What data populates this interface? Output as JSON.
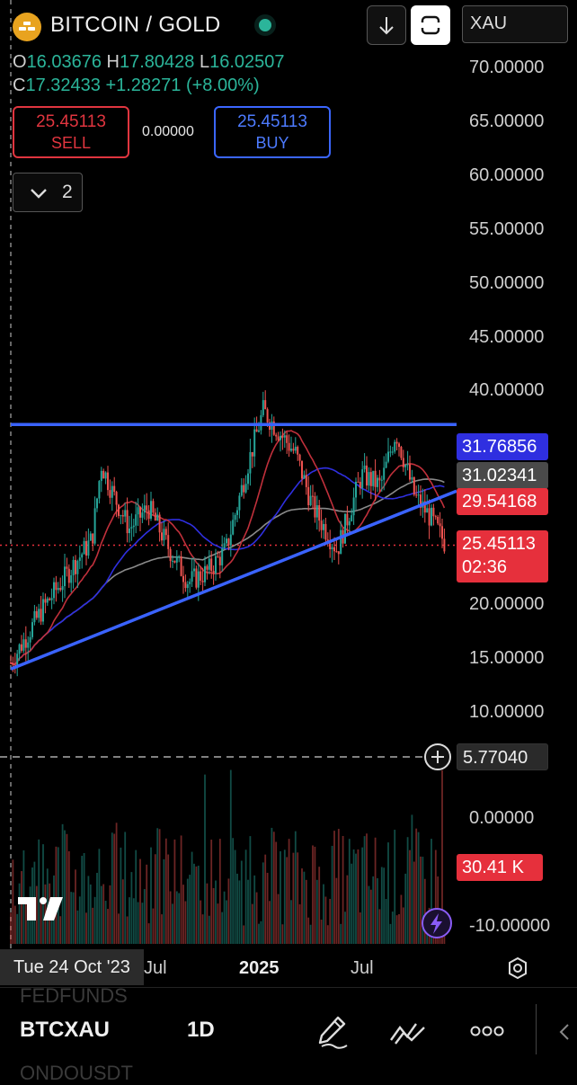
{
  "header": {
    "title": "BITCOIN / GOLD",
    "ohlc": {
      "o_label": "O",
      "o": "16.03676",
      "h_label": "H",
      "h": "17.80428",
      "l_label": "L",
      "l": "16.02507",
      "c_label": "C",
      "c": "17.32433",
      "change": "+1.28271 (+8.00%)"
    },
    "currency": "XAU"
  },
  "trade": {
    "sell_price": "25.45113",
    "sell_label": "SELL",
    "spread": "0.00000",
    "buy_price": "25.45113",
    "buy_label": "BUY"
  },
  "indicators": {
    "count": "2"
  },
  "price_axis": {
    "ticks": [
      "70.00000",
      "65.00000",
      "60.00000",
      "55.00000",
      "50.00000",
      "45.00000",
      "40.00000",
      "20.00000",
      "15.00000",
      "10.00000",
      "0.00000",
      "-10.00000"
    ],
    "tags": {
      "blue": "31.76856",
      "gray": "31.02341",
      "red": "29.54168",
      "current": "25.45113",
      "countdown": "02:36",
      "crosshair": "5.77040",
      "volume": "30.41 K"
    }
  },
  "time_axis": {
    "hover_date": "Tue 24 Oct '23",
    "ticks": [
      "Jul",
      "2025",
      "Jul"
    ]
  },
  "bottom": {
    "ghost_above": "FEDFUNDS",
    "symbol": "BTCXAU",
    "timeframe": "1D",
    "ghost_below": "ONDOUSDT"
  },
  "chart_data": {
    "type": "candlestick",
    "symbol": "BTCXAU",
    "timeframe": "1D",
    "x_ticks": [
      "Jul",
      "2025",
      "Jul"
    ],
    "y_ticks": [
      70,
      65,
      60,
      55,
      50,
      45,
      40,
      20,
      15,
      10
    ],
    "ylim": [
      5,
      72
    ],
    "current_price": 25.45113,
    "close_path": [
      {
        "x": "2023-10-24",
        "y": 14.5
      },
      {
        "x": "2023-12-15",
        "y": 19.5
      },
      {
        "x": "2024-01-15",
        "y": 22
      },
      {
        "x": "2024-03-05",
        "y": 26
      },
      {
        "x": "2024-03-20",
        "y": 33
      },
      {
        "x": "2024-04-10",
        "y": 30
      },
      {
        "x": "2024-05-05",
        "y": 27
      },
      {
        "x": "2024-06-05",
        "y": 29
      },
      {
        "x": "2024-07-10",
        "y": 25
      },
      {
        "x": "2024-08-10",
        "y": 22
      },
      {
        "x": "2024-09-10",
        "y": 23
      },
      {
        "x": "2024-10-10",
        "y": 25
      },
      {
        "x": "2024-11-15",
        "y": 33
      },
      {
        "x": "2024-12-10",
        "y": 38
      },
      {
        "x": "2025-01-05",
        "y": 36
      },
      {
        "x": "2025-02-01",
        "y": 34
      },
      {
        "x": "2025-03-01",
        "y": 29
      },
      {
        "x": "2025-04-10",
        "y": 25
      },
      {
        "x": "2025-05-20",
        "y": 32
      },
      {
        "x": "2025-06-20",
        "y": 31
      },
      {
        "x": "2025-07-15",
        "y": 36
      },
      {
        "x": "2025-08-15",
        "y": 30
      },
      {
        "x": "2025-09-10",
        "y": 28
      },
      {
        "x": "2025-10-05",
        "y": 25.5
      }
    ],
    "trendlines": [
      {
        "color": "#3a63ff",
        "from": {
          "x": "2023-10-24",
          "y": 36.7
        },
        "to": {
          "x": "2025-10-20",
          "y": 36.7
        }
      },
      {
        "color": "#3a63ff",
        "from": {
          "x": "2023-10-24",
          "y": 13.9
        },
        "to": {
          "x": "2025-10-20",
          "y": 30.5
        }
      }
    ],
    "moving_averages": [
      {
        "color": "#c0303b",
        "last": 29.54168
      },
      {
        "color": "#2f2fe0",
        "last": 31.76856
      },
      {
        "color": "#8a8a8a",
        "last": 31.02341
      }
    ],
    "volume_last": "30.41 K",
    "colors": {
      "up": "#26a69a",
      "down": "#ef5350"
    }
  }
}
